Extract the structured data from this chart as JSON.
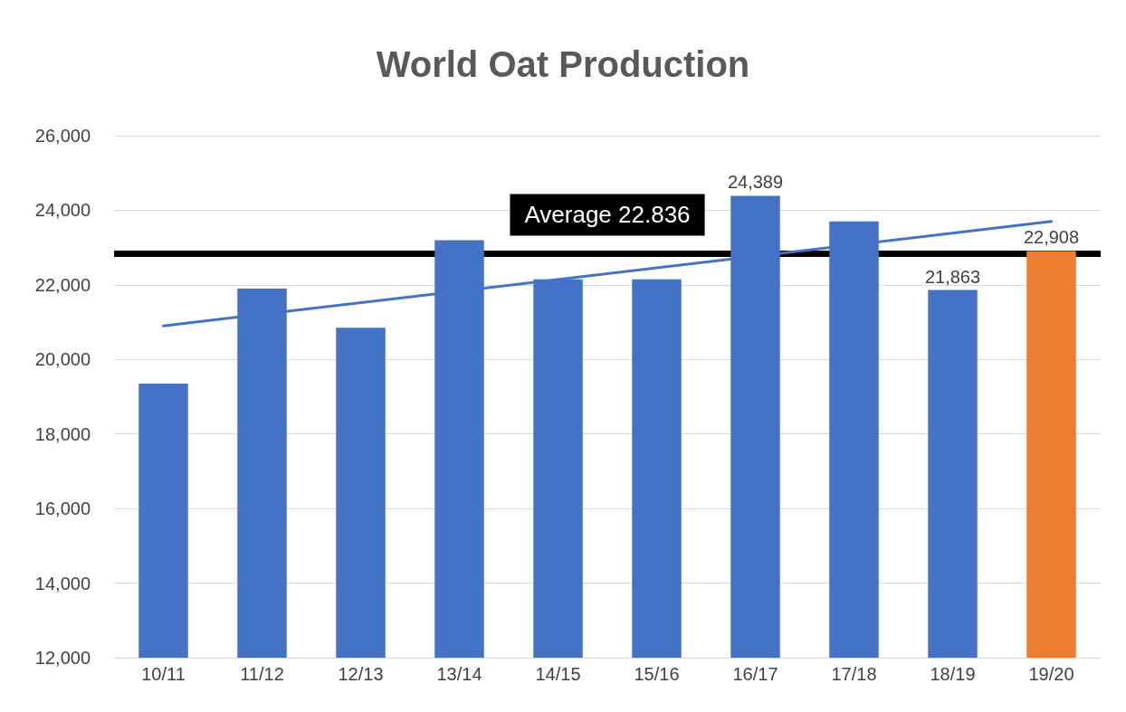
{
  "chart_data": {
    "type": "bar",
    "title": "World Oat Production",
    "categories": [
      "10/11",
      "11/12",
      "12/13",
      "13/14",
      "14/15",
      "15/16",
      "16/17",
      "17/18",
      "18/19",
      "19/20"
    ],
    "series": [
      {
        "values": [
          19350,
          21900,
          20850,
          23200,
          22150,
          22150,
          24389,
          23700,
          21863,
          22908
        ],
        "colors": [
          "#4472c4",
          "#4472c4",
          "#4472c4",
          "#4472c4",
          "#4472c4",
          "#4472c4",
          "#4472c4",
          "#4472c4",
          "#4472c4",
          "#ed7d31"
        ],
        "value_labels": [
          null,
          null,
          null,
          null,
          null,
          null,
          "24,389",
          null,
          "21,863",
          "22,908"
        ]
      },
      {
        "type": "line",
        "color": "#4472c4",
        "x": [
          "10/11",
          "19/20"
        ],
        "values": [
          20900,
          23700
        ]
      }
    ],
    "ylim": [
      12000,
      26000
    ],
    "yticks": [
      {
        "value": 12000,
        "label": "12,000"
      },
      {
        "value": 14000,
        "label": "14,000"
      },
      {
        "value": 16000,
        "label": "16,000"
      },
      {
        "value": 18000,
        "label": "18,000"
      },
      {
        "value": 20000,
        "label": "20,000"
      },
      {
        "value": 22000,
        "label": "22,000"
      },
      {
        "value": 24000,
        "label": "24,000"
      },
      {
        "value": 26000,
        "label": "26,000"
      }
    ],
    "ref_lines": [
      {
        "axis": "y",
        "value": 22836,
        "label": "Average 22.836",
        "color": "#000000"
      }
    ],
    "grid": "y",
    "marker": "none"
  }
}
